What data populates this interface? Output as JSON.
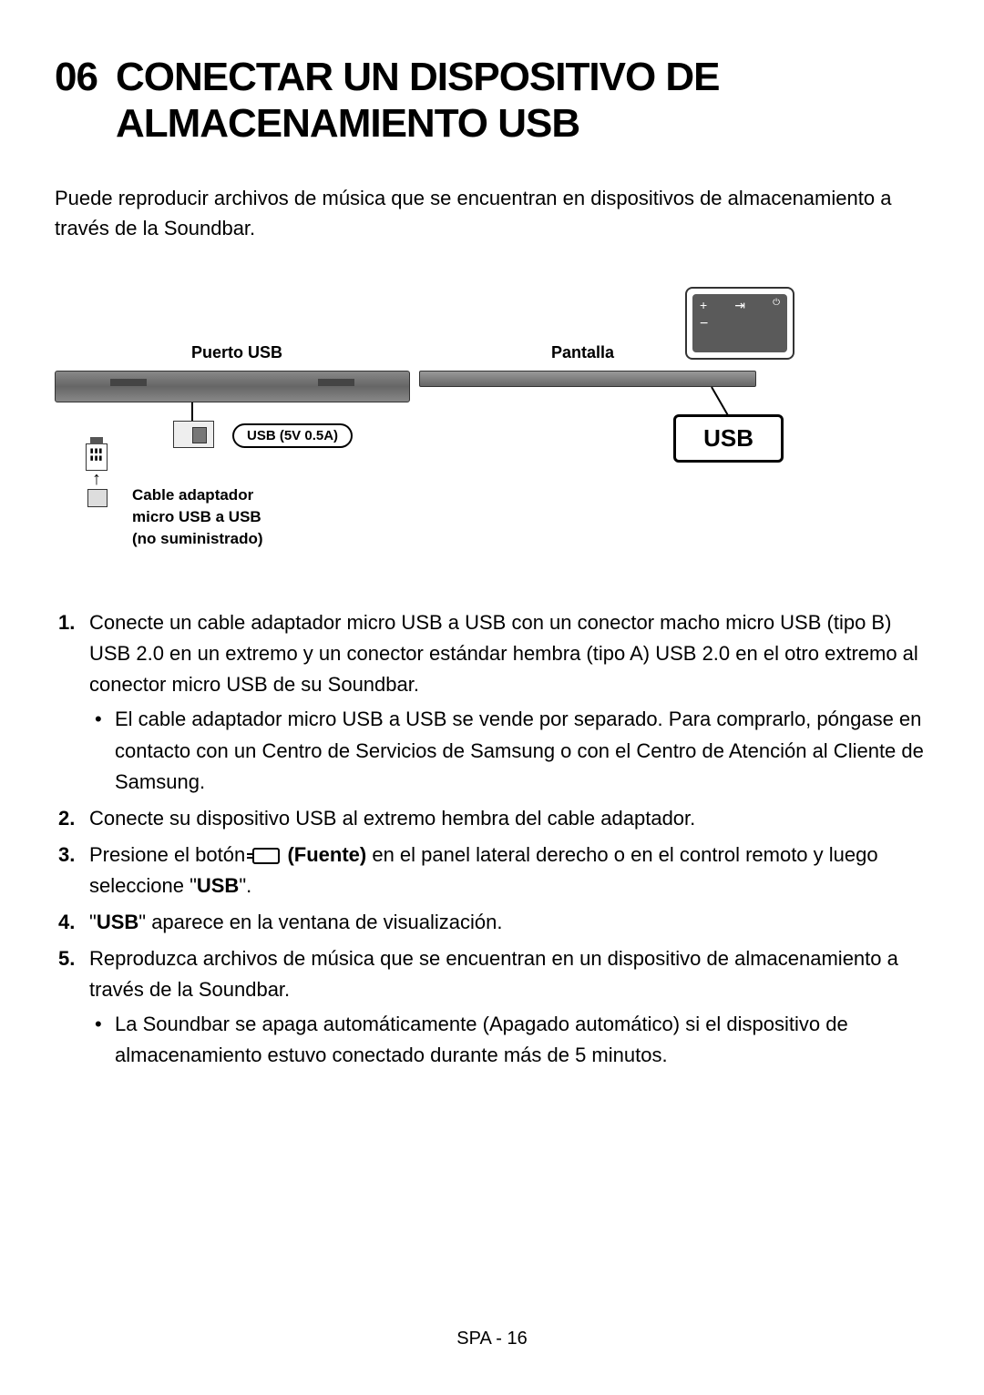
{
  "section_number": "06",
  "section_title": "CONECTAR UN DISPOSITIVO DE ALMACENAMIENTO USB",
  "intro": "Puede reproducir archivos de música que se encuentran en dispositivos de almacenamiento a través de la Soundbar.",
  "diagram": {
    "usb_port_label": "Puerto USB",
    "display_label": "Pantalla",
    "usb_spec_label": "USB (5V 0.5A)",
    "display_mode_text": "USB",
    "cable_label_line1": "Cable adaptador",
    "cable_label_line2": "micro USB a USB",
    "cable_label_line3": "(no suministrado)",
    "remote_top": "+  ⏻  ⏵  ⏻"
  },
  "steps": {
    "s1": "Conecte un cable adaptador micro USB a USB con un conector macho micro USB (tipo B) USB 2.0 en un extremo y un conector estándar hembra (tipo A) USB 2.0 en el otro extremo al conector micro USB de su Soundbar.",
    "s1_bullet": "El cable adaptador micro USB a USB se vende por separado. Para comprarlo, póngase en contacto con un Centro de Servicios de Samsung o con el Centro de Atención al Cliente de Samsung.",
    "s2": "Conecte su dispositivo USB al extremo hembra del cable adaptador.",
    "s3_pre": "Presione el botón ",
    "s3_bold": " (Fuente)",
    "s3_post": " en el panel lateral derecho o en el control remoto y luego seleccione \"",
    "s3_usb": "USB",
    "s3_end": "\".",
    "s4_pre": "\"",
    "s4_usb": "USB",
    "s4_post": "\" aparece en la ventana de visualización.",
    "s5": "Reproduzca archivos de música que se encuentran en un dispositivo de almacenamiento a través de la Soundbar.",
    "s5_bullet": "La Soundbar se apaga automáticamente (Apagado automático) si el dispositivo de almacenamiento estuvo conectado durante más de 5 minutos."
  },
  "footer": "SPA - 16"
}
